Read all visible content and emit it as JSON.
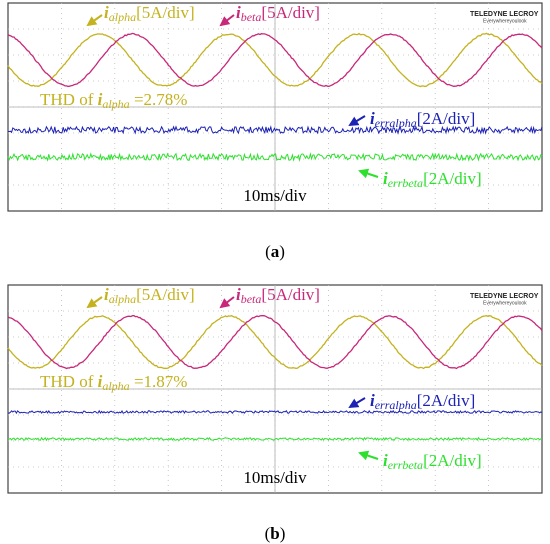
{
  "panels": [
    {
      "label": "a",
      "caption_open": "(",
      "caption_close": ")",
      "brand": "TELEDYNE LECROY",
      "slogan": "Everywhereyoulook",
      "traces": [
        {
          "symbol": "i",
          "sub": "alpha",
          "scale": "[5A/div]",
          "color": "#c4b21e"
        },
        {
          "symbol": "i",
          "sub": "beta",
          "scale": "[5A/div]",
          "color": "#c8287a"
        },
        {
          "symbol": "i",
          "sub": "erralpha",
          "scale": "[2A/div]",
          "color": "#1c22b4"
        },
        {
          "symbol": "i",
          "sub": "errbeta",
          "scale": "[2A/div]",
          "color": "#2ee02e"
        }
      ],
      "thd": {
        "prefix": "THD of ",
        "symbol": "i",
        "sub": "alpha",
        "value": " =2.78%"
      },
      "timebase": "10ms/div"
    },
    {
      "label": "b",
      "caption_open": "(",
      "caption_close": ")",
      "brand": "TELEDYNE LECROY",
      "slogan": "Everywhereyoulook",
      "traces": [
        {
          "symbol": "i",
          "sub": "alpha",
          "scale": "[5A/div]",
          "color": "#c4b21e"
        },
        {
          "symbol": "i",
          "sub": "beta",
          "scale": "[5A/div]",
          "color": "#c8287a"
        },
        {
          "symbol": "i",
          "sub": "erralpha",
          "scale": "[2A/div]",
          "color": "#1c22b4"
        },
        {
          "symbol": "i",
          "sub": "errbeta",
          "scale": "[2A/div]",
          "color": "#2ee02e"
        }
      ],
      "thd": {
        "prefix": "THD of ",
        "symbol": "i",
        "sub": "alpha",
        "value": " =1.87%"
      },
      "timebase": "10ms/div"
    }
  ]
}
